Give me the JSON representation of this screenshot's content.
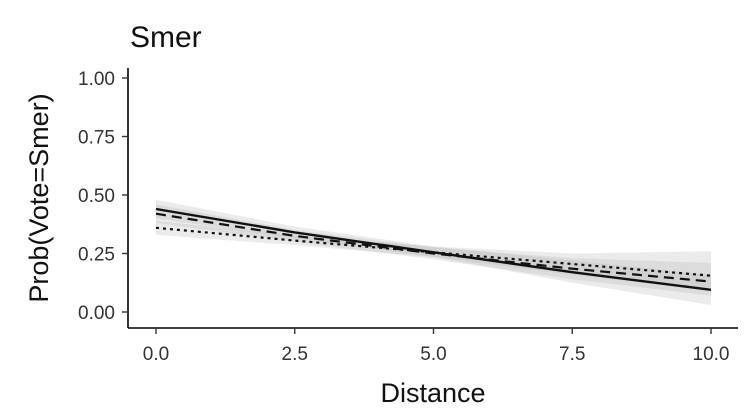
{
  "chart_data": {
    "type": "line",
    "title": "Smer",
    "xlabel": "Distance",
    "ylabel": "Prob(Vote=Smer)",
    "xlim": [
      0,
      10
    ],
    "ylim": [
      0,
      1
    ],
    "x_ticks": [
      "0.0",
      "2.5",
      "5.0",
      "7.5",
      "10.0"
    ],
    "y_ticks": [
      "0.00",
      "0.25",
      "0.50",
      "0.75",
      "1.00"
    ],
    "grid": false,
    "legend": "none",
    "series": [
      {
        "style": "solid",
        "color": "#111111",
        "x": [
          0,
          2.5,
          5,
          7.5,
          10
        ],
        "y": [
          0.44,
          0.34,
          0.255,
          0.17,
          0.095
        ],
        "band_lower": [
          0.4,
          0.315,
          0.235,
          0.125,
          0.03
        ],
        "band_upper": [
          0.48,
          0.365,
          0.28,
          0.22,
          0.16
        ]
      },
      {
        "style": "dashed",
        "color": "#111111",
        "x": [
          0,
          2.5,
          5,
          7.5,
          10
        ],
        "y": [
          0.42,
          0.325,
          0.25,
          0.185,
          0.13
        ],
        "band_lower": [
          0.38,
          0.3,
          0.225,
          0.14,
          0.07
        ],
        "band_upper": [
          0.46,
          0.35,
          0.275,
          0.23,
          0.21
        ]
      },
      {
        "style": "dotted",
        "color": "#111111",
        "x": [
          0,
          2.5,
          5,
          7.5,
          10
        ],
        "y": [
          0.36,
          0.305,
          0.255,
          0.205,
          0.155
        ],
        "band_lower": [
          0.33,
          0.285,
          0.235,
          0.16,
          0.09
        ],
        "band_upper": [
          0.39,
          0.325,
          0.28,
          0.25,
          0.26
        ]
      }
    ]
  }
}
